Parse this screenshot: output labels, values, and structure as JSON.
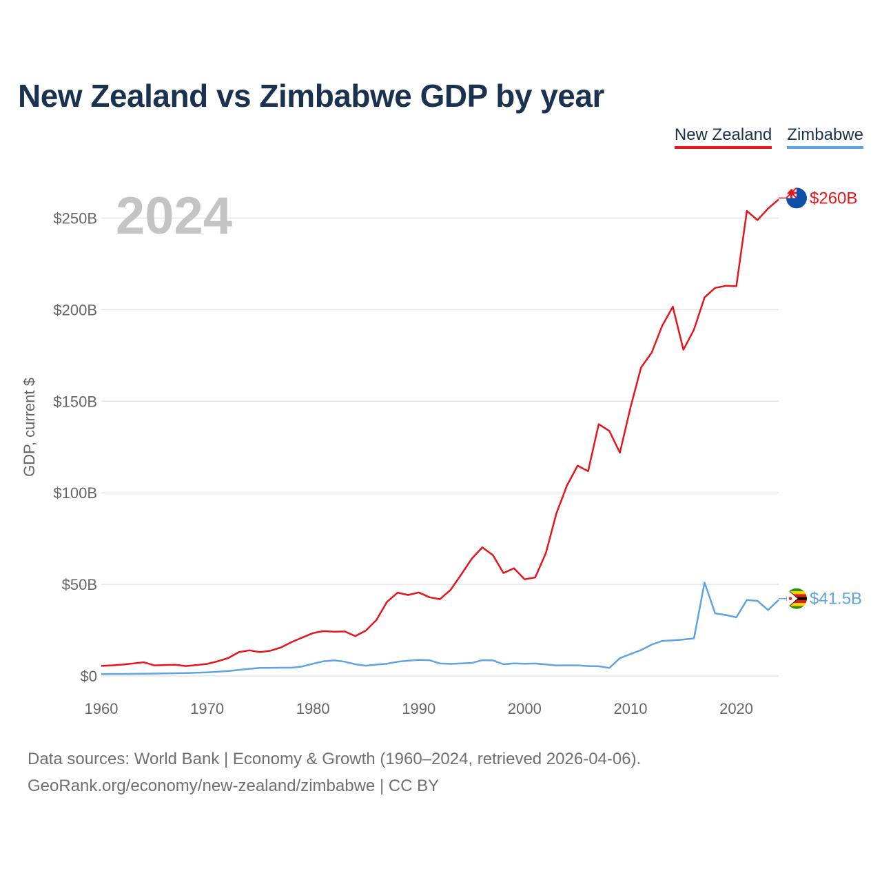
{
  "title": "New Zealand vs Zimbabwe GDP by year",
  "legend": {
    "nz": "New Zealand",
    "zw": "Zimbabwe"
  },
  "year_label": "2024",
  "source": {
    "line1": "Data sources: World Bank | Economy & Growth (1960–2024, retrieved 2026-04-06).",
    "line2": "GeoRank.org/economy/new-zealand/zimbabwe | CC BY"
  },
  "colors": {
    "nz": "#e8141d",
    "zw": "#5fa3e0",
    "grid": "#e6e6e6",
    "title": "#1b3150"
  },
  "chart_data": {
    "type": "line",
    "title": "New Zealand vs Zimbabwe GDP by year",
    "xlabel": "",
    "ylabel": "GDP, current $",
    "xlim": [
      1960,
      2024
    ],
    "ylim": [
      0,
      260
    ],
    "x_ticks": [
      1960,
      1970,
      1980,
      1990,
      2000,
      2010,
      2020
    ],
    "x_tick_labels": [
      "1960",
      "1970",
      "1980",
      "1990",
      "2000",
      "2010",
      "2020"
    ],
    "y_ticks": [
      0,
      50,
      100,
      150,
      200,
      250
    ],
    "y_tick_labels": [
      "$0",
      "$50B",
      "$100B",
      "$150B",
      "$200B",
      "$250B"
    ],
    "units": "billions USD",
    "legend_position": "top-right",
    "grid": true,
    "x": [
      1960,
      1961,
      1962,
      1963,
      1964,
      1965,
      1966,
      1967,
      1968,
      1969,
      1970,
      1971,
      1972,
      1973,
      1974,
      1975,
      1976,
      1977,
      1978,
      1979,
      1980,
      1981,
      1982,
      1983,
      1984,
      1985,
      1986,
      1987,
      1988,
      1989,
      1990,
      1991,
      1992,
      1993,
      1994,
      1995,
      1996,
      1997,
      1998,
      1999,
      2000,
      2001,
      2002,
      2003,
      2004,
      2005,
      2006,
      2007,
      2008,
      2009,
      2010,
      2011,
      2012,
      2013,
      2014,
      2015,
      2016,
      2017,
      2018,
      2019,
      2020,
      2021,
      2022,
      2023,
      2024
    ],
    "series": [
      {
        "name": "New Zealand",
        "color": "#e8141d",
        "end_label": "$260B",
        "values": [
          5.5,
          5.8,
          6.2,
          6.8,
          7.5,
          5.8,
          6.0,
          6.1,
          5.4,
          6.0,
          6.6,
          8.0,
          9.8,
          13.0,
          14.0,
          13.0,
          13.8,
          15.6,
          18.6,
          21.0,
          23.4,
          24.5,
          24.2,
          24.3,
          21.8,
          24.8,
          30.6,
          40.5,
          45.5,
          44.2,
          45.6,
          43.0,
          41.9,
          47.0,
          55.3,
          64.0,
          70.2,
          66.0,
          56.2,
          58.8,
          52.8,
          53.8,
          67.0,
          88.8,
          104.0,
          114.8,
          111.8,
          137.5,
          133.8,
          121.9,
          146.6,
          168.4,
          176.5,
          191.2,
          201.6,
          178.1,
          189.1,
          206.7,
          211.9,
          213.0,
          212.8,
          253.9,
          248.9,
          255.2,
          260.2
        ]
      },
      {
        "name": "Zimbabwe",
        "color": "#5fa3e0",
        "end_label": "$41.5B",
        "values": [
          1.05,
          1.1,
          1.1,
          1.15,
          1.2,
          1.3,
          1.4,
          1.5,
          1.6,
          1.8,
          2.0,
          2.3,
          2.7,
          3.3,
          3.9,
          4.4,
          4.4,
          4.5,
          4.5,
          5.2,
          6.7,
          8.0,
          8.5,
          7.8,
          6.4,
          5.6,
          6.2,
          6.7,
          7.8,
          8.3,
          8.8,
          8.6,
          6.8,
          6.6,
          6.9,
          7.1,
          8.6,
          8.5,
          6.4,
          6.9,
          6.7,
          6.8,
          6.3,
          5.7,
          5.8,
          5.8,
          5.4,
          5.3,
          4.4,
          9.7,
          12.0,
          14.1,
          17.1,
          19.1,
          19.5,
          19.9,
          20.5,
          51.0,
          34.2,
          33.3,
          32.0,
          41.5,
          41.0,
          36.0,
          41.5
        ]
      }
    ]
  }
}
